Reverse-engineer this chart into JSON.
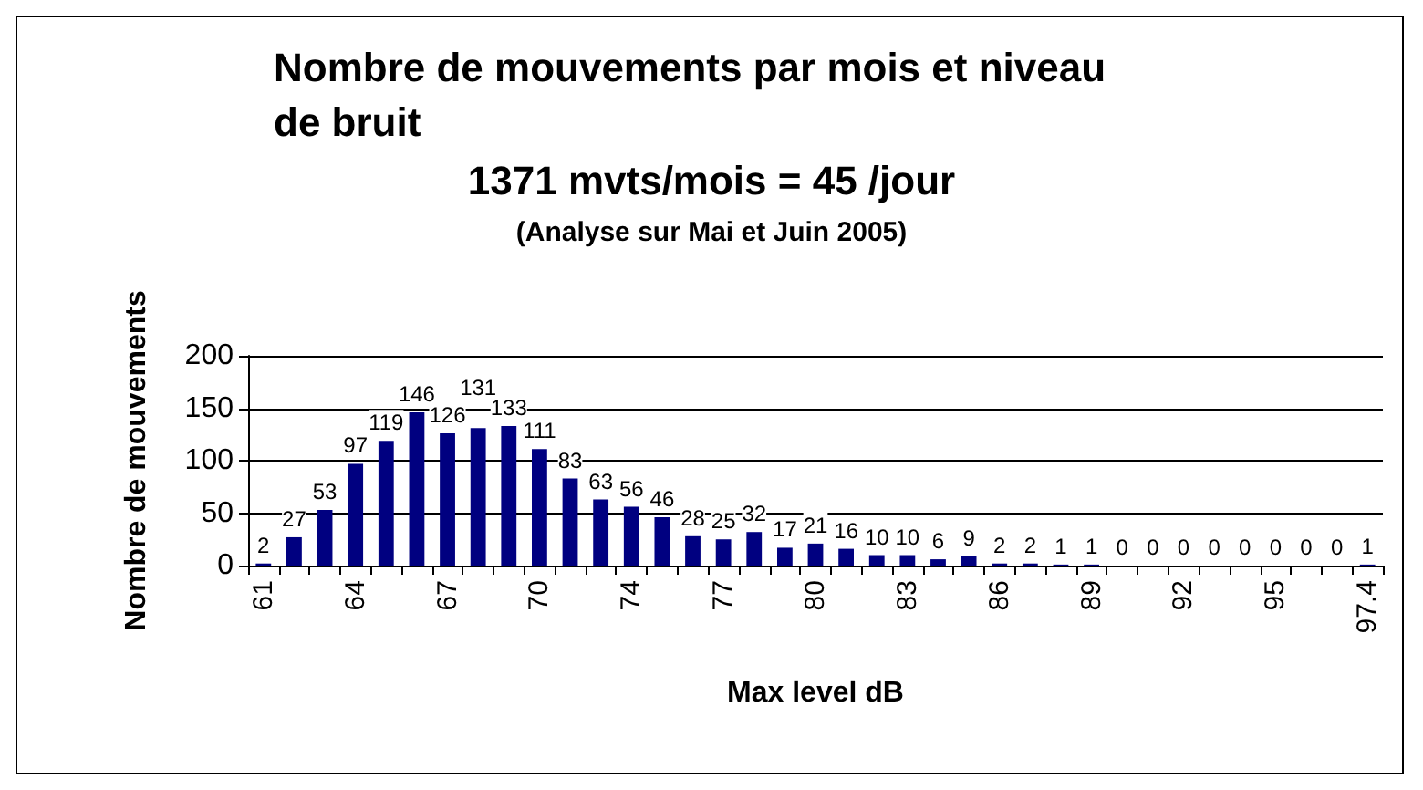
{
  "chart_data": {
    "type": "bar",
    "title": "Nombre de mouvements par mois et niveau de bruit",
    "subtitle": "1371 mvts/mois = 45 /jour",
    "annotations": [
      "(Analyse sur Mai et Juin 2005)"
    ],
    "xlabel": "Max level dB",
    "ylabel": "Nombre de mouvements",
    "categories": [
      "61",
      null,
      null,
      "64",
      null,
      null,
      "67",
      null,
      null,
      "70",
      null,
      null,
      "74",
      null,
      null,
      "77",
      null,
      null,
      "80",
      null,
      null,
      "83",
      null,
      null,
      "86",
      null,
      null,
      "89",
      null,
      null,
      "92",
      null,
      null,
      "95",
      null,
      null,
      "97.4"
    ],
    "values": [
      2,
      27,
      53,
      97,
      119,
      146,
      126,
      131,
      133,
      111,
      83,
      63,
      56,
      46,
      28,
      25,
      32,
      17,
      21,
      16,
      10,
      10,
      6,
      9,
      2,
      2,
      1,
      1,
      0,
      0,
      0,
      0,
      0,
      0,
      0,
      0,
      1
    ],
    "color": "#000080",
    "ylim": [
      0,
      200
    ],
    "yticks": [
      0,
      50,
      100,
      150,
      200
    ],
    "grid": "y",
    "data_labels": true
  }
}
